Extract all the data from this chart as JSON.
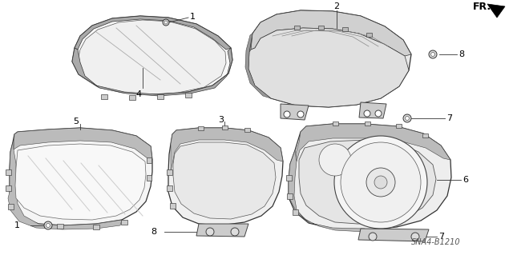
{
  "background_color": "#ffffff",
  "diagram_ref": "SNA4-B1210",
  "line_color": "#333333",
  "hatch_color": "#555555",
  "lw_main": 0.8,
  "lw_thin": 0.5
}
